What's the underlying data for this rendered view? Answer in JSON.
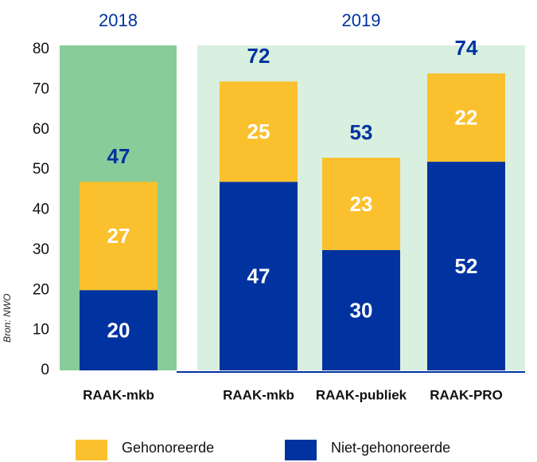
{
  "chart_data": {
    "type": "stacked_bar",
    "groups": [
      {
        "name": "2018",
        "categories": [
          0
        ]
      },
      {
        "name": "2019",
        "categories": [
          1,
          2,
          3
        ]
      }
    ],
    "categories": [
      "RAAK-mkb",
      "RAAK-mkb",
      "RAAK-publiek",
      "RAAK-PRO"
    ],
    "series": [
      {
        "name": "Gehonoreerde",
        "color": "#fbc02d",
        "values": [
          27,
          25,
          23,
          22
        ]
      },
      {
        "name": "Niet-gehonoreerde",
        "color": "#0033a0",
        "values": [
          20,
          47,
          30,
          52
        ]
      }
    ],
    "totals": [
      47,
      72,
      53,
      74
    ],
    "ylim": [
      0,
      80
    ],
    "yticks": [
      0,
      10,
      20,
      30,
      40,
      50,
      60,
      70,
      80
    ],
    "grid": false,
    "group_colors": [
      "#88cc99",
      "#d9efdf"
    ],
    "source": "Bron: NWO"
  }
}
